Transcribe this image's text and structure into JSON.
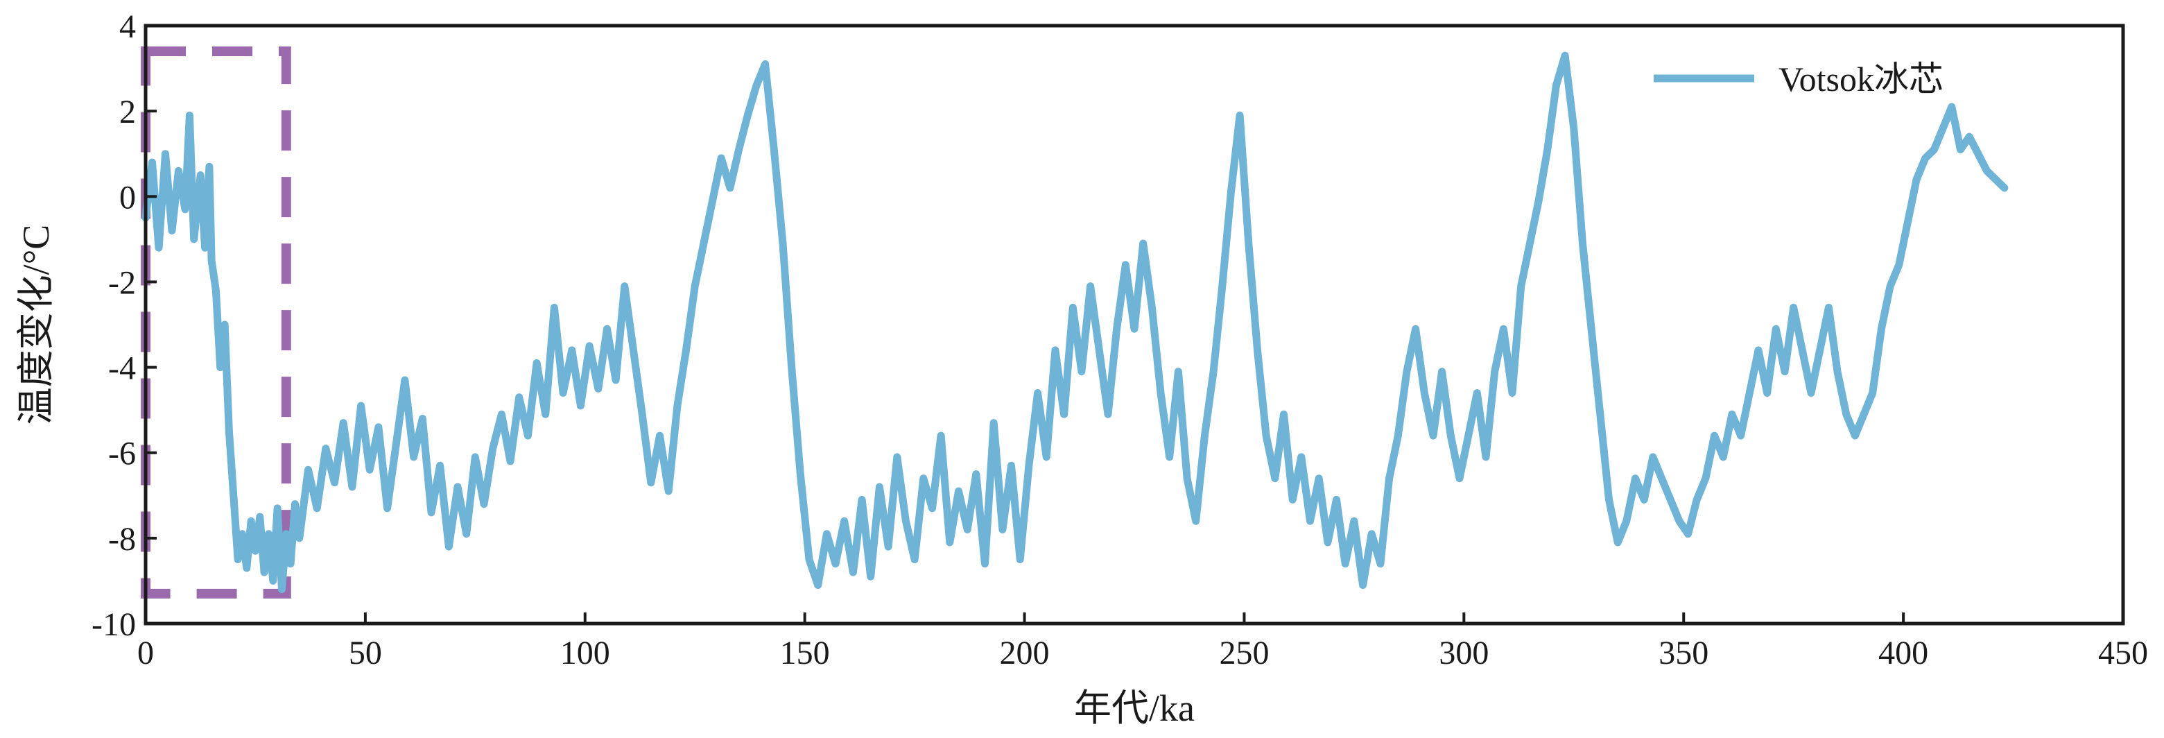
{
  "chart_data": {
    "type": "line",
    "xlabel": "年代/ka",
    "ylabel": "温度变化/°C",
    "xlim": [
      0,
      450
    ],
    "ylim": [
      -10,
      4
    ],
    "x_ticks": [
      0,
      50,
      100,
      150,
      200,
      250,
      300,
      350,
      400,
      450
    ],
    "y_ticks": [
      4,
      2,
      0,
      -2,
      -4,
      -6,
      -8,
      -10
    ],
    "x_tick_labels": [
      "0",
      "50",
      "100",
      "150",
      "200",
      "250",
      "300",
      "350",
      "400",
      "450"
    ],
    "y_tick_labels": [
      "4",
      "2",
      "0",
      "-2",
      "-4",
      "-6",
      "-8",
      "-10"
    ],
    "grid": false,
    "legend_position": "top-right",
    "series": [
      {
        "name": "Votsok冰芯",
        "color": "#6fb3d6",
        "points": [
          [
            0,
            -0.5
          ],
          [
            1.5,
            0.8
          ],
          [
            3,
            -1.2
          ],
          [
            4.5,
            1.0
          ],
          [
            6,
            -0.8
          ],
          [
            7.5,
            0.6
          ],
          [
            9,
            -0.3
          ],
          [
            10,
            1.9
          ],
          [
            11,
            -1.0
          ],
          [
            12.5,
            0.5
          ],
          [
            13.5,
            -1.2
          ],
          [
            14.5,
            0.7
          ],
          [
            15,
            -1.5
          ],
          [
            16,
            -2.2
          ],
          [
            17,
            -4.0
          ],
          [
            18,
            -3.0
          ],
          [
            19,
            -5.5
          ],
          [
            20,
            -7.0
          ],
          [
            21,
            -8.5
          ],
          [
            22,
            -7.9
          ],
          [
            23,
            -8.7
          ],
          [
            24,
            -7.6
          ],
          [
            25,
            -8.3
          ],
          [
            26,
            -7.5
          ],
          [
            27,
            -8.8
          ],
          [
            28,
            -7.9
          ],
          [
            29,
            -9.0
          ],
          [
            30,
            -7.3
          ],
          [
            31,
            -9.2
          ],
          [
            32,
            -7.9
          ],
          [
            33,
            -8.6
          ],
          [
            34,
            -7.2
          ],
          [
            35,
            -8.0
          ],
          [
            37,
            -6.4
          ],
          [
            39,
            -7.3
          ],
          [
            41,
            -5.9
          ],
          [
            43,
            -6.7
          ],
          [
            45,
            -5.3
          ],
          [
            47,
            -6.8
          ],
          [
            49,
            -4.9
          ],
          [
            51,
            -6.4
          ],
          [
            53,
            -5.4
          ],
          [
            55,
            -7.3
          ],
          [
            57,
            -5.8
          ],
          [
            59,
            -4.3
          ],
          [
            61,
            -6.1
          ],
          [
            63,
            -5.2
          ],
          [
            65,
            -7.4
          ],
          [
            67,
            -6.3
          ],
          [
            69,
            -8.2
          ],
          [
            71,
            -6.8
          ],
          [
            73,
            -7.9
          ],
          [
            75,
            -6.1
          ],
          [
            77,
            -7.2
          ],
          [
            79,
            -5.9
          ],
          [
            81,
            -5.1
          ],
          [
            83,
            -6.2
          ],
          [
            85,
            -4.7
          ],
          [
            87,
            -5.6
          ],
          [
            89,
            -3.9
          ],
          [
            91,
            -5.1
          ],
          [
            93,
            -2.6
          ],
          [
            95,
            -4.6
          ],
          [
            97,
            -3.6
          ],
          [
            99,
            -4.9
          ],
          [
            101,
            -3.5
          ],
          [
            103,
            -4.5
          ],
          [
            105,
            -3.1
          ],
          [
            107,
            -4.3
          ],
          [
            109,
            -2.1
          ],
          [
            111,
            -3.6
          ],
          [
            113,
            -5.1
          ],
          [
            115,
            -6.7
          ],
          [
            117,
            -5.6
          ],
          [
            119,
            -6.9
          ],
          [
            121,
            -4.9
          ],
          [
            123,
            -3.6
          ],
          [
            125,
            -2.1
          ],
          [
            127,
            -1.1
          ],
          [
            129,
            -0.1
          ],
          [
            131,
            0.9
          ],
          [
            133,
            0.2
          ],
          [
            135,
            1.1
          ],
          [
            137,
            1.9
          ],
          [
            139,
            2.6
          ],
          [
            141,
            3.1
          ],
          [
            143,
            1.1
          ],
          [
            145,
            -1.1
          ],
          [
            147,
            -4.0
          ],
          [
            149,
            -6.5
          ],
          [
            151,
            -8.5
          ],
          [
            153,
            -9.1
          ],
          [
            155,
            -7.9
          ],
          [
            157,
            -8.6
          ],
          [
            159,
            -7.6
          ],
          [
            161,
            -8.8
          ],
          [
            163,
            -7.1
          ],
          [
            165,
            -8.9
          ],
          [
            167,
            -6.8
          ],
          [
            169,
            -8.2
          ],
          [
            171,
            -6.1
          ],
          [
            173,
            -7.6
          ],
          [
            175,
            -8.5
          ],
          [
            177,
            -6.6
          ],
          [
            179,
            -7.3
          ],
          [
            181,
            -5.6
          ],
          [
            183,
            -8.1
          ],
          [
            185,
            -6.9
          ],
          [
            187,
            -7.8
          ],
          [
            189,
            -6.5
          ],
          [
            191,
            -8.6
          ],
          [
            193,
            -5.3
          ],
          [
            195,
            -7.8
          ],
          [
            197,
            -6.3
          ],
          [
            199,
            -8.5
          ],
          [
            201,
            -6.3
          ],
          [
            203,
            -4.6
          ],
          [
            205,
            -6.1
          ],
          [
            207,
            -3.6
          ],
          [
            209,
            -5.1
          ],
          [
            211,
            -2.6
          ],
          [
            213,
            -4.1
          ],
          [
            215,
            -2.1
          ],
          [
            217,
            -3.6
          ],
          [
            219,
            -5.1
          ],
          [
            221,
            -3.1
          ],
          [
            223,
            -1.6
          ],
          [
            225,
            -3.1
          ],
          [
            227,
            -1.1
          ],
          [
            229,
            -2.6
          ],
          [
            231,
            -4.6
          ],
          [
            233,
            -6.1
          ],
          [
            235,
            -4.1
          ],
          [
            237,
            -6.6
          ],
          [
            239,
            -7.6
          ],
          [
            241,
            -5.6
          ],
          [
            243,
            -4.1
          ],
          [
            245,
            -2.1
          ],
          [
            247,
            0.1
          ],
          [
            249,
            1.9
          ],
          [
            251,
            -1.1
          ],
          [
            253,
            -3.6
          ],
          [
            255,
            -5.6
          ],
          [
            257,
            -6.6
          ],
          [
            259,
            -5.1
          ],
          [
            261,
            -7.1
          ],
          [
            263,
            -6.1
          ],
          [
            265,
            -7.6
          ],
          [
            267,
            -6.6
          ],
          [
            269,
            -8.1
          ],
          [
            271,
            -7.1
          ],
          [
            273,
            -8.6
          ],
          [
            275,
            -7.6
          ],
          [
            277,
            -9.1
          ],
          [
            279,
            -7.9
          ],
          [
            281,
            -8.6
          ],
          [
            283,
            -6.6
          ],
          [
            285,
            -5.6
          ],
          [
            287,
            -4.1
          ],
          [
            289,
            -3.1
          ],
          [
            291,
            -4.6
          ],
          [
            293,
            -5.6
          ],
          [
            295,
            -4.1
          ],
          [
            297,
            -5.6
          ],
          [
            299,
            -6.6
          ],
          [
            301,
            -5.6
          ],
          [
            303,
            -4.6
          ],
          [
            305,
            -6.1
          ],
          [
            307,
            -4.1
          ],
          [
            309,
            -3.1
          ],
          [
            311,
            -4.6
          ],
          [
            313,
            -2.1
          ],
          [
            315,
            -1.1
          ],
          [
            317,
            -0.1
          ],
          [
            319,
            1.1
          ],
          [
            321,
            2.6
          ],
          [
            323,
            3.3
          ],
          [
            325,
            1.6
          ],
          [
            327,
            -1.1
          ],
          [
            329,
            -3.1
          ],
          [
            331,
            -5.1
          ],
          [
            333,
            -7.1
          ],
          [
            335,
            -8.1
          ],
          [
            337,
            -7.6
          ],
          [
            339,
            -6.6
          ],
          [
            341,
            -7.1
          ],
          [
            343,
            -6.1
          ],
          [
            345,
            -6.6
          ],
          [
            347,
            -7.1
          ],
          [
            349,
            -7.6
          ],
          [
            351,
            -7.9
          ],
          [
            353,
            -7.1
          ],
          [
            355,
            -6.6
          ],
          [
            357,
            -5.6
          ],
          [
            359,
            -6.1
          ],
          [
            361,
            -5.1
          ],
          [
            363,
            -5.6
          ],
          [
            365,
            -4.6
          ],
          [
            367,
            -3.6
          ],
          [
            369,
            -4.6
          ],
          [
            371,
            -3.1
          ],
          [
            373,
            -4.1
          ],
          [
            375,
            -2.6
          ],
          [
            377,
            -3.6
          ],
          [
            379,
            -4.6
          ],
          [
            381,
            -3.6
          ],
          [
            383,
            -2.6
          ],
          [
            385,
            -4.1
          ],
          [
            387,
            -5.1
          ],
          [
            389,
            -5.6
          ],
          [
            391,
            -5.1
          ],
          [
            393,
            -4.6
          ],
          [
            395,
            -3.1
          ],
          [
            397,
            -2.1
          ],
          [
            399,
            -1.6
          ],
          [
            401,
            -0.6
          ],
          [
            403,
            0.4
          ],
          [
            405,
            0.9
          ],
          [
            407,
            1.1
          ],
          [
            409,
            1.6
          ],
          [
            411,
            2.1
          ],
          [
            413,
            1.1
          ],
          [
            415,
            1.4
          ],
          [
            417,
            1.0
          ],
          [
            419,
            0.6
          ],
          [
            421,
            0.4
          ],
          [
            423,
            0.2
          ]
        ]
      }
    ],
    "annotations": [
      {
        "type": "dashed-rectangle",
        "color": "#9b6aac",
        "x": [
          0,
          32
        ],
        "y": [
          -9.3,
          3.4
        ]
      }
    ]
  }
}
